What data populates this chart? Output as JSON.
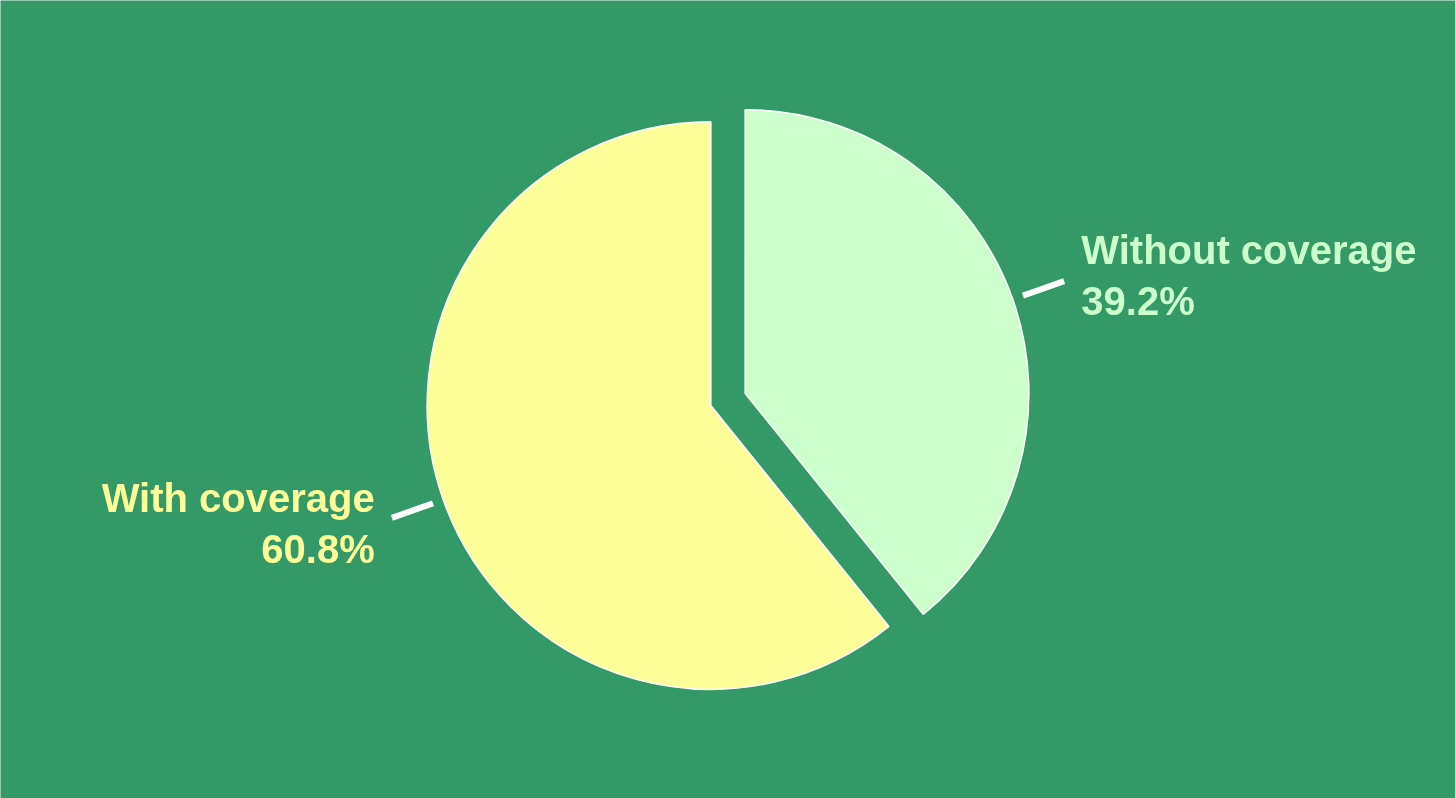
{
  "chart_data": {
    "type": "pie",
    "categories": [
      "With coverage",
      "Without coverage"
    ],
    "values": [
      60.8,
      39.2
    ],
    "colors": [
      "#ffff99",
      "#ccffcc"
    ],
    "value_labels": [
      "60.8%",
      "39.2%"
    ]
  }
}
